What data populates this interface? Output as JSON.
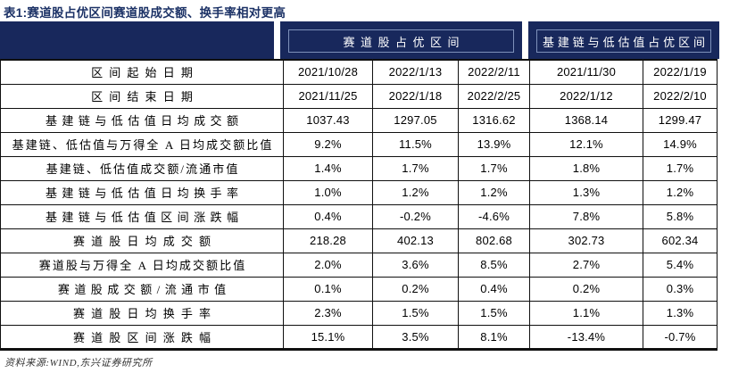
{
  "chart_data": {
    "type": "table",
    "title": "表1:赛道股占优区间赛道股成交额、换手率相对更高",
    "column_groups": [
      {
        "label": "赛道股占优区间",
        "span": 3
      },
      {
        "label": "基建链与低估值占优区间",
        "span": 2
      }
    ],
    "rows": [
      {
        "label": "区间起始日期",
        "values": [
          "2021/10/28",
          "2022/1/13",
          "2022/2/11",
          "2021/11/30",
          "2022/1/19"
        ]
      },
      {
        "label": "区间结束日期",
        "values": [
          "2021/11/25",
          "2022/1/18",
          "2022/2/25",
          "2022/1/12",
          "2022/2/10"
        ]
      },
      {
        "label": "基建链与低估值日均成交额",
        "values": [
          "1037.43",
          "1297.05",
          "1316.62",
          "1368.14",
          "1299.47"
        ]
      },
      {
        "label": "基建链、低估值与万得全 A 日均成交额比值",
        "values": [
          "9.2%",
          "11.5%",
          "13.9%",
          "12.1%",
          "14.9%"
        ]
      },
      {
        "label": "基建链、低估值成交额/流通市值",
        "values": [
          "1.4%",
          "1.7%",
          "1.7%",
          "1.8%",
          "1.7%"
        ]
      },
      {
        "label": "基建链与低估值日均换手率",
        "values": [
          "1.0%",
          "1.2%",
          "1.2%",
          "1.3%",
          "1.2%"
        ]
      },
      {
        "label": "基建链与低估值区间涨跌幅",
        "values": [
          "0.4%",
          "-0.2%",
          "-4.6%",
          "7.8%",
          "5.8%"
        ]
      },
      {
        "label": "赛道股日均成交额",
        "values": [
          "218.28",
          "402.13",
          "802.68",
          "302.73",
          "602.34"
        ]
      },
      {
        "label": "赛道股与万得全 A 日均成交额比值",
        "values": [
          "2.0%",
          "3.6%",
          "8.5%",
          "2.7%",
          "5.4%"
        ]
      },
      {
        "label": "赛道股成交额/流通市值",
        "values": [
          "0.1%",
          "0.2%",
          "0.4%",
          "0.2%",
          "0.3%"
        ]
      },
      {
        "label": "赛道股日均换手率",
        "values": [
          "2.3%",
          "1.5%",
          "1.5%",
          "1.1%",
          "1.3%"
        ]
      },
      {
        "label": "赛道股区间涨跌幅",
        "values": [
          "15.1%",
          "3.5%",
          "8.1%",
          "-13.4%",
          "-0.7%"
        ]
      }
    ],
    "source": "资料来源:WIND,东兴证券研究所"
  },
  "colors": {
    "header_background": "#18285c",
    "title_text": "#1c3266",
    "header_text": "#ffffff",
    "group_box_border": "#7e91ba",
    "table_border": "#101010",
    "cell_text": "#000000",
    "source_text": "#333333"
  }
}
